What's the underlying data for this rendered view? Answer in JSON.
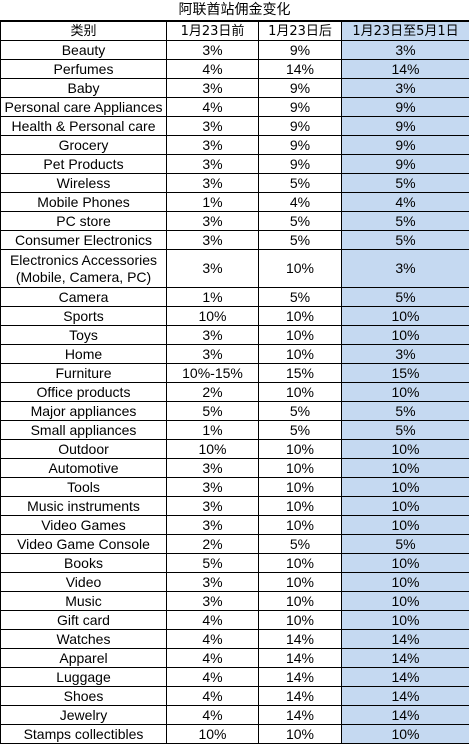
{
  "title": "阿联酋站佣金变化",
  "headers": [
    "类别",
    "1月23日前",
    "1月23日后",
    "1月23日至5月1日"
  ],
  "colors": {
    "highlight": "#c5d9f1",
    "border": "#000000"
  },
  "rows": [
    [
      "Beauty",
      "3%",
      "9%",
      "3%"
    ],
    [
      "Perfumes",
      "4%",
      "14%",
      "14%"
    ],
    [
      "Baby",
      "3%",
      "9%",
      "3%"
    ],
    [
      "Personal care Appliances",
      "4%",
      "9%",
      "9%"
    ],
    [
      "Health & Personal care",
      "3%",
      "9%",
      "9%"
    ],
    [
      "Grocery",
      "3%",
      "9%",
      "9%"
    ],
    [
      "Pet Products",
      "3%",
      "9%",
      "9%"
    ],
    [
      "Wireless",
      "3%",
      "5%",
      "5%"
    ],
    [
      "Mobile Phones",
      "1%",
      "4%",
      "4%"
    ],
    [
      "PC store",
      "3%",
      "5%",
      "5%"
    ],
    [
      "Consumer Electronics",
      "3%",
      "5%",
      "5%"
    ],
    [
      "Electronics Accessories (Mobile, Camera, PC)",
      "3%",
      "10%",
      "3%"
    ],
    [
      "Camera",
      "1%",
      "5%",
      "5%"
    ],
    [
      "Sports",
      "10%",
      "10%",
      "10%"
    ],
    [
      "Toys",
      "3%",
      "10%",
      "10%"
    ],
    [
      "Home",
      "3%",
      "10%",
      "3%"
    ],
    [
      "Furniture",
      "10%-15%",
      "15%",
      "15%"
    ],
    [
      "Office products",
      "2%",
      "10%",
      "10%"
    ],
    [
      "Major appliances",
      "5%",
      "5%",
      "5%"
    ],
    [
      "Small appliances",
      "1%",
      "5%",
      "5%"
    ],
    [
      "Outdoor",
      "10%",
      "10%",
      "10%"
    ],
    [
      "Automotive",
      "3%",
      "10%",
      "10%"
    ],
    [
      "Tools",
      "3%",
      "10%",
      "10%"
    ],
    [
      "Music instruments",
      "3%",
      "10%",
      "10%"
    ],
    [
      "Video Games",
      "3%",
      "10%",
      "10%"
    ],
    [
      "Video Game Console",
      "2%",
      "5%",
      "5%"
    ],
    [
      "Books",
      "5%",
      "10%",
      "10%"
    ],
    [
      "Video",
      "3%",
      "10%",
      "10%"
    ],
    [
      "Music",
      "3%",
      "10%",
      "10%"
    ],
    [
      "Gift card",
      "4%",
      "10%",
      "10%"
    ],
    [
      "Watches",
      "4%",
      "14%",
      "14%"
    ],
    [
      "Apparel",
      "4%",
      "14%",
      "14%"
    ],
    [
      "Luggage",
      "4%",
      "14%",
      "14%"
    ],
    [
      "Shoes",
      "4%",
      "14%",
      "14%"
    ],
    [
      "Jewelry",
      "4%",
      "14%",
      "14%"
    ],
    [
      "Stamps collectibles",
      "10%",
      "10%",
      "10%"
    ]
  ]
}
